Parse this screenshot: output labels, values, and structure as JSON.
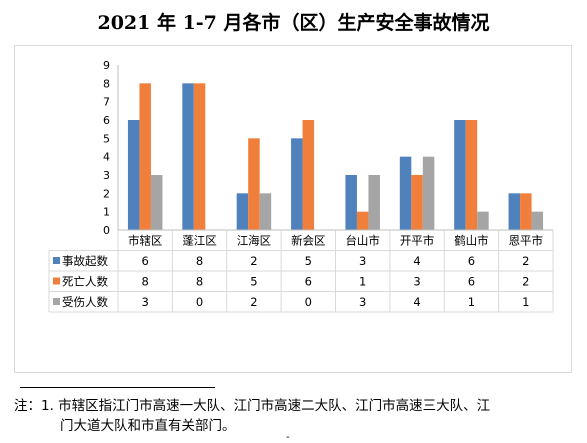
{
  "title": "2021 年 1-7 月各市（区）生产安全事故情况",
  "chart_data": {
    "type": "bar",
    "categories": [
      "市辖区",
      "蓬江区",
      "江海区",
      "新会区",
      "台山市",
      "开平市",
      "鹤山市",
      "恩平市"
    ],
    "series": [
      {
        "name": "事故起数",
        "color": "#4f81bd",
        "values": [
          6,
          8,
          2,
          5,
          3,
          4,
          6,
          2
        ]
      },
      {
        "name": "死亡人数",
        "color": "#f07f3c",
        "values": [
          8,
          8,
          5,
          6,
          1,
          3,
          6,
          2
        ]
      },
      {
        "name": "受伤人数",
        "color": "#a5a5a5",
        "values": [
          3,
          0,
          2,
          0,
          3,
          4,
          1,
          1
        ]
      }
    ],
    "ylim": [
      0,
      9
    ],
    "yticks": [
      0,
      1,
      2,
      3,
      4,
      5,
      6,
      7,
      8,
      9
    ],
    "grid": false,
    "legend_position": "data-table-left"
  },
  "footnote": {
    "line1": "注：1. 市辖区指江门市高速一大队、江门市高速二大队、江门市高速三大队、江",
    "line2": "门大道大队和市直有关部门。"
  },
  "page_mark": "-"
}
